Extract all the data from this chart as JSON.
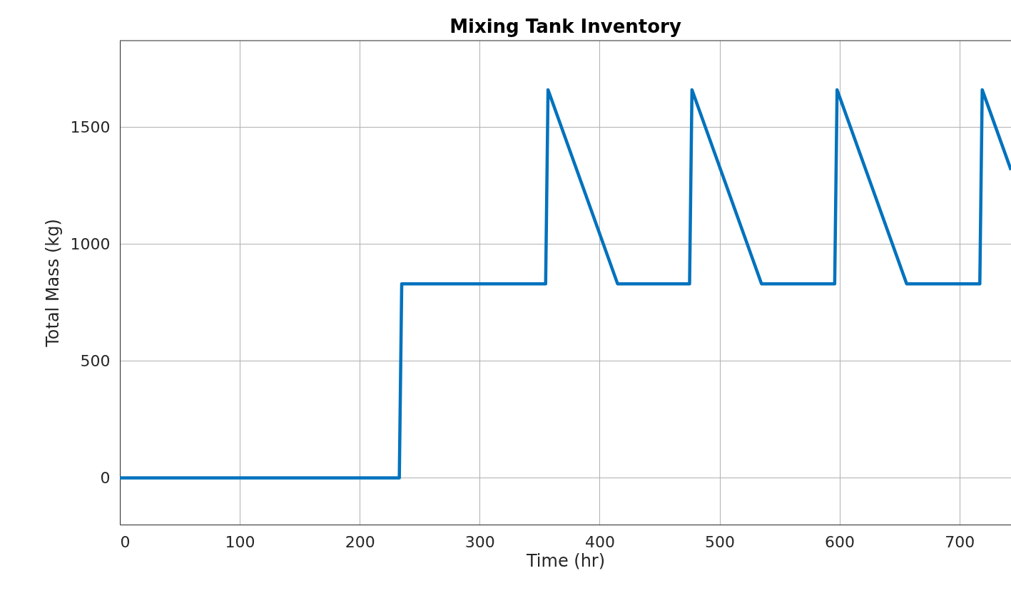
{
  "chart_data": {
    "type": "line",
    "title": "Mixing Tank Inventory",
    "xlabel": "Time (hr)",
    "ylabel": "Total Mass (kg)",
    "x": [
      0,
      233,
      235,
      355,
      357,
      415,
      475,
      477,
      535,
      596,
      598,
      656,
      717,
      719,
      743
    ],
    "series": [
      {
        "color": "#0072bd",
        "values": [
          0,
          0,
          830,
          830,
          1660,
          830,
          830,
          1660,
          830,
          830,
          1660,
          830,
          830,
          1660,
          1317
        ]
      }
    ],
    "xlim": [
      0,
      743
    ],
    "ylim": [
      -200,
      1870
    ],
    "xticks": [
      0,
      100,
      200,
      300,
      400,
      500,
      600,
      700
    ],
    "yticks": [
      0,
      500,
      1000,
      1500
    ],
    "grid": true,
    "marker": "none",
    "line_style": "solid"
  }
}
